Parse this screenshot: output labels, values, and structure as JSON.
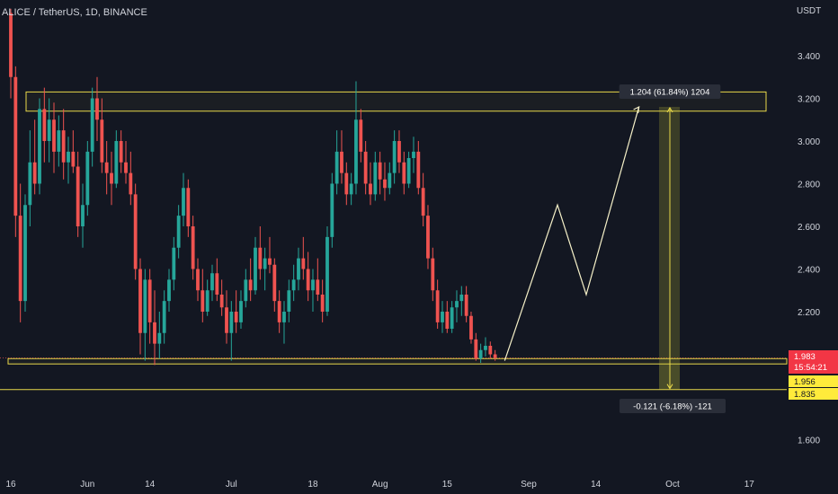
{
  "chart_data": {
    "type": "candlestick",
    "title": "ALICE / TetherUS, 1D, BINANCE",
    "currency": "USDT",
    "ylim": [
      1.5,
      3.6
    ],
    "y_ticks": [
      {
        "value": 3.4,
        "label": "3.400"
      },
      {
        "value": 3.2,
        "label": "3.200"
      },
      {
        "value": 3.0,
        "label": "3.000"
      },
      {
        "value": 2.8,
        "label": "2.800"
      },
      {
        "value": 2.6,
        "label": "2.600"
      },
      {
        "value": 2.4,
        "label": "2.400"
      },
      {
        "value": 2.2,
        "label": "2.200"
      },
      {
        "value": 1.6,
        "label": "1.600"
      }
    ],
    "x_ticks": [
      {
        "index": 0,
        "label": "16"
      },
      {
        "index": 16,
        "label": "Jun"
      },
      {
        "index": 29,
        "label": "14"
      },
      {
        "index": 46,
        "label": "Jul"
      },
      {
        "index": 63,
        "label": "18"
      },
      {
        "index": 77,
        "label": "Aug"
      },
      {
        "index": 91,
        "label": "15"
      },
      {
        "index": 108,
        "label": "Sep"
      },
      {
        "index": 122,
        "label": "14"
      },
      {
        "index": 138,
        "label": "Oct"
      },
      {
        "index": 154,
        "label": "17"
      }
    ],
    "candles": [
      [
        3.6,
        3.62,
        3.2,
        3.3
      ],
      [
        3.3,
        3.35,
        2.55,
        2.65
      ],
      [
        2.65,
        2.8,
        2.15,
        2.25
      ],
      [
        2.25,
        2.75,
        2.2,
        2.7
      ],
      [
        2.7,
        3.05,
        2.6,
        2.9
      ],
      [
        2.9,
        3.1,
        2.75,
        2.8
      ],
      [
        2.8,
        3.2,
        2.75,
        3.15
      ],
      [
        3.15,
        3.25,
        2.9,
        3.0
      ],
      [
        3.0,
        3.2,
        2.9,
        3.1
      ],
      [
        3.1,
        3.18,
        2.85,
        2.95
      ],
      [
        2.95,
        3.12,
        2.88,
        3.05
      ],
      [
        3.05,
        3.15,
        2.82,
        2.9
      ],
      [
        2.9,
        3.02,
        2.8,
        2.95
      ],
      [
        2.95,
        3.05,
        2.85,
        2.88
      ],
      [
        2.88,
        2.95,
        2.55,
        2.6
      ],
      [
        2.6,
        2.8,
        2.5,
        2.7
      ],
      [
        2.7,
        3.0,
        2.65,
        2.95
      ],
      [
        2.95,
        3.25,
        2.88,
        3.2
      ],
      [
        3.2,
        3.3,
        3.0,
        3.1
      ],
      [
        3.1,
        3.2,
        2.85,
        2.9
      ],
      [
        2.9,
        3.0,
        2.75,
        2.85
      ],
      [
        2.85,
        2.95,
        2.7,
        2.8
      ],
      [
        2.8,
        3.05,
        2.78,
        3.0
      ],
      [
        3.0,
        3.05,
        2.85,
        2.9
      ],
      [
        2.9,
        3.0,
        2.8,
        2.85
      ],
      [
        2.85,
        2.95,
        2.7,
        2.75
      ],
      [
        2.75,
        2.8,
        2.35,
        2.4
      ],
      [
        2.4,
        2.45,
        2.0,
        2.1
      ],
      [
        2.1,
        2.4,
        1.97,
        2.35
      ],
      [
        2.35,
        2.4,
        2.05,
        2.15
      ],
      [
        2.15,
        2.3,
        1.95,
        2.05
      ],
      [
        2.05,
        2.2,
        1.98,
        2.1
      ],
      [
        2.1,
        2.3,
        2.05,
        2.25
      ],
      [
        2.25,
        2.4,
        2.2,
        2.35
      ],
      [
        2.35,
        2.55,
        2.3,
        2.5
      ],
      [
        2.5,
        2.7,
        2.45,
        2.65
      ],
      [
        2.65,
        2.85,
        2.6,
        2.78
      ],
      [
        2.78,
        2.82,
        2.55,
        2.6
      ],
      [
        2.6,
        2.65,
        2.35,
        2.4
      ],
      [
        2.4,
        2.45,
        2.25,
        2.3
      ],
      [
        2.3,
        2.4,
        2.15,
        2.2
      ],
      [
        2.2,
        2.35,
        2.18,
        2.3
      ],
      [
        2.3,
        2.42,
        2.25,
        2.38
      ],
      [
        2.38,
        2.45,
        2.25,
        2.28
      ],
      [
        2.28,
        2.35,
        2.18,
        2.22
      ],
      [
        2.22,
        2.3,
        2.05,
        2.1
      ],
      [
        2.1,
        2.25,
        1.97,
        2.2
      ],
      [
        2.2,
        2.3,
        2.1,
        2.15
      ],
      [
        2.15,
        2.3,
        2.12,
        2.25
      ],
      [
        2.25,
        2.4,
        2.22,
        2.35
      ],
      [
        2.35,
        2.45,
        2.25,
        2.3
      ],
      [
        2.3,
        2.55,
        2.28,
        2.5
      ],
      [
        2.5,
        2.6,
        2.35,
        2.4
      ],
      [
        2.4,
        2.5,
        2.3,
        2.45
      ],
      [
        2.45,
        2.55,
        2.38,
        2.42
      ],
      [
        2.42,
        2.45,
        2.2,
        2.25
      ],
      [
        2.25,
        2.3,
        2.1,
        2.15
      ],
      [
        2.15,
        2.25,
        2.05,
        2.2
      ],
      [
        2.2,
        2.35,
        2.15,
        2.3
      ],
      [
        2.3,
        2.42,
        2.25,
        2.35
      ],
      [
        2.35,
        2.5,
        2.3,
        2.45
      ],
      [
        2.45,
        2.55,
        2.35,
        2.4
      ],
      [
        2.4,
        2.48,
        2.25,
        2.3
      ],
      [
        2.3,
        2.4,
        2.2,
        2.35
      ],
      [
        2.35,
        2.45,
        2.25,
        2.28
      ],
      [
        2.28,
        2.35,
        2.15,
        2.2
      ],
      [
        2.2,
        2.6,
        2.18,
        2.55
      ],
      [
        2.55,
        2.85,
        2.5,
        2.8
      ],
      [
        2.8,
        3.05,
        2.75,
        2.95
      ],
      [
        2.95,
        3.05,
        2.8,
        2.85
      ],
      [
        2.85,
        2.9,
        2.7,
        2.75
      ],
      [
        2.75,
        2.85,
        2.7,
        2.8
      ],
      [
        2.8,
        3.28,
        2.75,
        3.1
      ],
      [
        3.1,
        3.15,
        2.9,
        2.95
      ],
      [
        2.95,
        3.0,
        2.75,
        2.8
      ],
      [
        2.8,
        2.9,
        2.7,
        2.75
      ],
      [
        2.75,
        2.95,
        2.72,
        2.9
      ],
      [
        2.9,
        2.95,
        2.75,
        2.82
      ],
      [
        2.82,
        2.9,
        2.72,
        2.78
      ],
      [
        2.78,
        2.9,
        2.75,
        2.85
      ],
      [
        2.85,
        3.05,
        2.8,
        3.0
      ],
      [
        3.0,
        3.05,
        2.85,
        2.9
      ],
      [
        2.9,
        2.95,
        2.75,
        2.8
      ],
      [
        2.8,
        2.95,
        2.78,
        2.92
      ],
      [
        2.92,
        3.02,
        2.85,
        2.95
      ],
      [
        2.95,
        3.0,
        2.75,
        2.78
      ],
      [
        2.78,
        2.85,
        2.6,
        2.65
      ],
      [
        2.65,
        2.7,
        2.4,
        2.45
      ],
      [
        2.45,
        2.5,
        2.25,
        2.3
      ],
      [
        2.3,
        2.35,
        2.12,
        2.15
      ],
      [
        2.15,
        2.25,
        2.1,
        2.2
      ],
      [
        2.2,
        2.25,
        2.1,
        2.12
      ],
      [
        2.12,
        2.25,
        2.1,
        2.22
      ],
      [
        2.22,
        2.3,
        2.15,
        2.25
      ],
      [
        2.25,
        2.32,
        2.18,
        2.28
      ],
      [
        2.28,
        2.32,
        2.15,
        2.18
      ],
      [
        2.18,
        2.2,
        2.05,
        2.07
      ],
      [
        2.07,
        2.1,
        1.97,
        1.98
      ],
      [
        1.98,
        2.05,
        1.96,
        2.02
      ],
      [
        2.02,
        2.08,
        1.99,
        2.04
      ],
      [
        2.04,
        2.06,
        1.98,
        2.0
      ],
      [
        2.0,
        2.02,
        1.97,
        1.983
      ]
    ],
    "last_price": "1.983",
    "countdown": "15:54:21",
    "support_label_1": "1.956",
    "support_label_2": "1.835",
    "zones": [
      {
        "name": "resistance",
        "from": 3.14,
        "to": 3.23
      },
      {
        "name": "support",
        "from": 1.955,
        "to": 1.98
      }
    ],
    "horizontal_lines": [
      1.835
    ],
    "projection_path": [
      {
        "index": 103,
        "value": 1.97
      },
      {
        "index": 114,
        "value": 2.7
      },
      {
        "index": 120,
        "value": 2.28
      },
      {
        "index": 131,
        "value": 3.16
      }
    ],
    "measure_up": {
      "text": "1.204 (61.84%) 1204",
      "from": 1.956,
      "to": 3.16
    },
    "measure_down": {
      "text": "-0.121 (-6.18%) -121",
      "from": 1.956,
      "to": 1.835
    },
    "colors": {
      "up": "#26a69a",
      "down": "#ef5350",
      "zone": "#e8d84a",
      "background": "#131722",
      "badge_bg": "#2a2e39",
      "price_tag": "#f23645",
      "support_tag": "#ffeb3b"
    }
  }
}
